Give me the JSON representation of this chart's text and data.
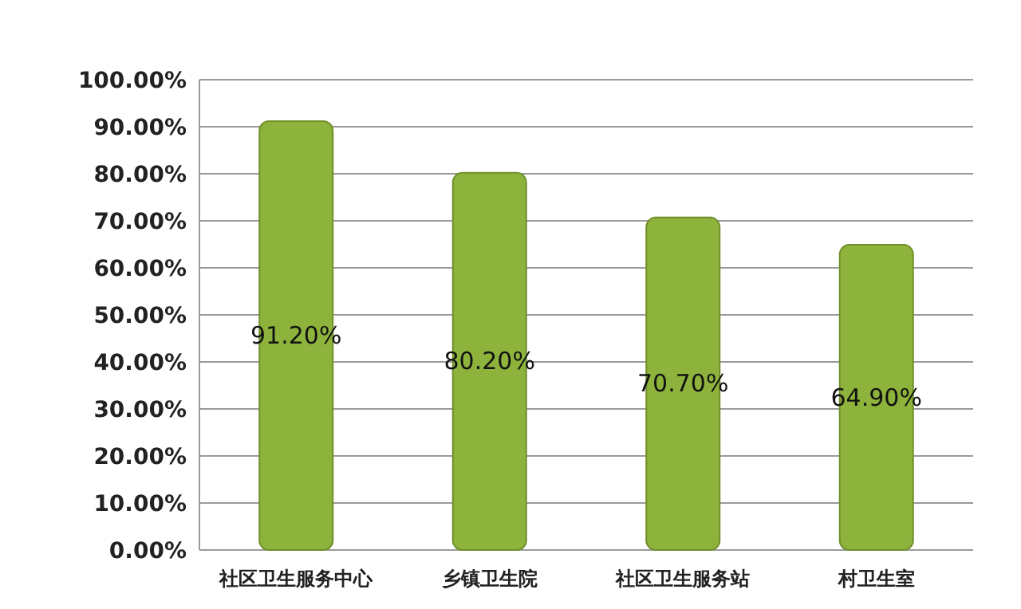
{
  "chart_data": {
    "type": "bar",
    "categories": [
      "社区卫生服务中心",
      "乡镇卫生院",
      "社区卫生服务站",
      "村卫生室"
    ],
    "values": [
      91.2,
      80.2,
      70.7,
      64.9
    ],
    "value_labels": [
      "91.20%",
      "80.20%",
      "70.70%",
      "64.90%"
    ],
    "color": "#8db33c",
    "grid": "y",
    "ylim": [
      0,
      100
    ],
    "yticks": [
      {
        "value": 0,
        "label": "0.00%"
      },
      {
        "value": 10,
        "label": "10.00%"
      },
      {
        "value": 20,
        "label": "20.00%"
      },
      {
        "value": 30,
        "label": "30.00%"
      },
      {
        "value": 40,
        "label": "40.00%"
      },
      {
        "value": 50,
        "label": "50.00%"
      },
      {
        "value": 60,
        "label": "60.00%"
      },
      {
        "value": 70,
        "label": "70.00%"
      },
      {
        "value": 80,
        "label": "80.00%"
      },
      {
        "value": 90,
        "label": "90.00%"
      },
      {
        "value": 100,
        "label": "100.00%"
      }
    ]
  }
}
